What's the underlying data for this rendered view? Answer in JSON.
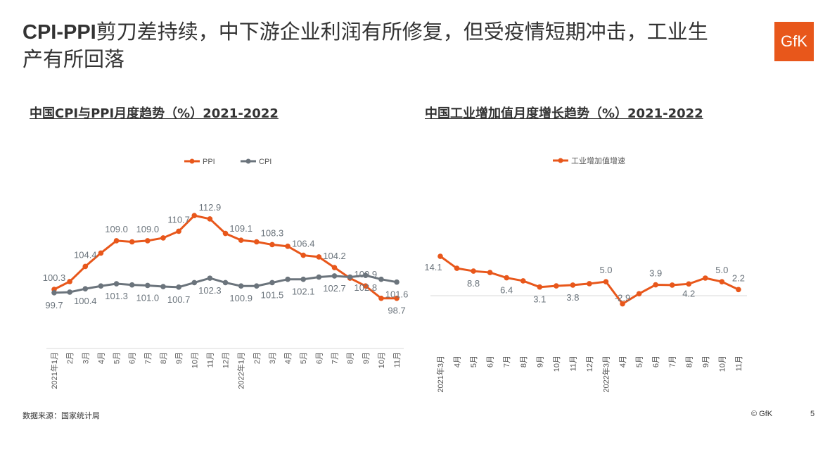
{
  "title": "CPI-PPI剪刀差持续，中下游企业利润有所修复，但受疫情短期冲击，工业生产有所回落",
  "title_bold": "CPI-PPI",
  "title_rest": "剪刀差持续，中下游企业利润有所修复，但受疫情短期冲击，工业生产有所回落",
  "logo": "GfK",
  "source": "数据来源：国家统计局",
  "copyright": "© GfK",
  "page_number": "5",
  "colors": {
    "orange": "#e8571b",
    "gray": "#6b747c"
  },
  "chart_data": [
    {
      "type": "line",
      "title": "中国CPI与PPI月度趋势（%）2021-2022",
      "legend": "top",
      "categories": [
        "2021年1月",
        "2月",
        "3月",
        "4月",
        "5月",
        "6月",
        "7月",
        "8月",
        "9月",
        "10月",
        "11月",
        "12月",
        "2022年1月",
        "2月",
        "3月",
        "4月",
        "5月",
        "6月",
        "7月",
        "8月",
        "9月",
        "10月",
        "11月"
      ],
      "series": [
        {
          "name": "PPI",
          "color": "#e8571b",
          "values": [
            100.3,
            101.7,
            104.4,
            106.8,
            109.0,
            108.8,
            109.0,
            109.5,
            110.7,
            113.5,
            112.9,
            110.3,
            109.1,
            108.8,
            108.3,
            108.0,
            106.4,
            106.1,
            104.2,
            102.3,
            100.9,
            98.7,
            98.7
          ],
          "labeled": [
            0,
            2,
            4,
            6,
            8,
            10,
            12,
            14,
            16,
            18,
            20,
            22
          ]
        },
        {
          "name": "CPI",
          "color": "#6b747c",
          "values": [
            99.7,
            99.8,
            100.4,
            100.9,
            101.3,
            101.1,
            101.0,
            100.8,
            100.7,
            101.5,
            102.3,
            101.5,
            100.9,
            100.9,
            101.5,
            102.1,
            102.1,
            102.5,
            102.7,
            102.5,
            102.8,
            102.1,
            101.6
          ],
          "labeled": [
            0,
            2,
            4,
            6,
            8,
            10,
            12,
            14,
            16,
            18,
            20,
            22
          ]
        }
      ]
    },
    {
      "type": "line",
      "title": "中国工业增加值月度增长趋势（%）2021-2022",
      "legend": "top",
      "categories": [
        "2021年3月",
        "4月",
        "5月",
        "6月",
        "7月",
        "8月",
        "9月",
        "10月",
        "11月",
        "12月",
        "2022年3月",
        "4月",
        "5月",
        "6月",
        "7月",
        "8月",
        "9月",
        "10月",
        "11月"
      ],
      "series": [
        {
          "name": "工业增加值增速",
          "color": "#e8571b",
          "values": [
            14.1,
            9.8,
            8.8,
            8.3,
            6.4,
            5.3,
            3.1,
            3.5,
            3.8,
            4.3,
            5.0,
            -2.9,
            0.7,
            3.9,
            3.8,
            4.2,
            6.3,
            5.0,
            2.2
          ],
          "labeled": [
            0,
            2,
            4,
            6,
            8,
            10,
            11,
            13,
            15,
            17,
            18
          ]
        }
      ]
    }
  ]
}
